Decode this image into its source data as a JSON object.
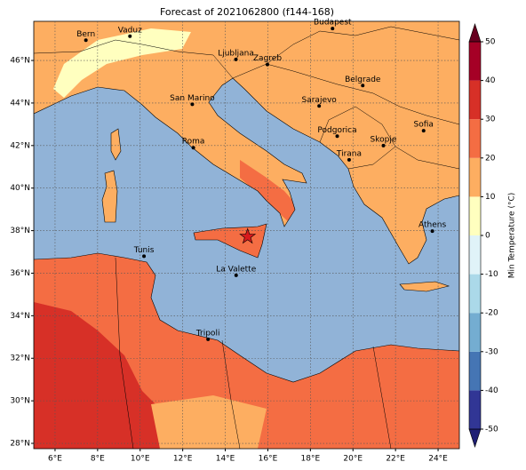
{
  "title": "Forecast of 2021062800 (f144-168)",
  "map": {
    "xlim": [
      5,
      25
    ],
    "ylim": [
      27.75,
      47.84
    ],
    "xticks": [
      {
        "value": 6,
        "label": "6°E"
      },
      {
        "value": 8,
        "label": "8°E"
      },
      {
        "value": 10,
        "label": "10°E"
      },
      {
        "value": 12,
        "label": "12°E"
      },
      {
        "value": 14,
        "label": "14°E"
      },
      {
        "value": 16,
        "label": "16°E"
      },
      {
        "value": 18,
        "label": "18°E"
      },
      {
        "value": 20,
        "label": "20°E"
      },
      {
        "value": 22,
        "label": "22°E"
      },
      {
        "value": 24,
        "label": "24°E"
      }
    ],
    "yticks": [
      {
        "value": 28,
        "label": "28°N"
      },
      {
        "value": 30,
        "label": "30°N"
      },
      {
        "value": 32,
        "label": "32°N"
      },
      {
        "value": 34,
        "label": "34°N"
      },
      {
        "value": 36,
        "label": "36°N"
      },
      {
        "value": 38,
        "label": "38°N"
      },
      {
        "value": 40,
        "label": "40°N"
      },
      {
        "value": 42,
        "label": "42°N"
      },
      {
        "value": 44,
        "label": "44°N"
      },
      {
        "value": 46,
        "label": "46°N"
      }
    ],
    "grid": true,
    "cities": [
      {
        "name": "Bern",
        "lon": 7.45,
        "lat": 46.95
      },
      {
        "name": "Vaduz",
        "lon": 9.52,
        "lat": 47.14
      },
      {
        "name": "Budapest",
        "lon": 19.04,
        "lat": 47.5
      },
      {
        "name": "Ljubljana",
        "lon": 14.5,
        "lat": 46.05
      },
      {
        "name": "Zagreb",
        "lon": 15.98,
        "lat": 45.81
      },
      {
        "name": "Belgrade",
        "lon": 20.46,
        "lat": 44.82
      },
      {
        "name": "San Marino",
        "lon": 12.45,
        "lat": 43.94
      },
      {
        "name": "Sarajevo",
        "lon": 18.41,
        "lat": 43.86
      },
      {
        "name": "Sofia",
        "lon": 23.32,
        "lat": 42.7
      },
      {
        "name": "Roma",
        "lon": 12.5,
        "lat": 41.9
      },
      {
        "name": "Podgorica",
        "lon": 19.26,
        "lat": 42.44
      },
      {
        "name": "Skopje",
        "lon": 21.43,
        "lat": 42.0
      },
      {
        "name": "Tirana",
        "lon": 19.82,
        "lat": 41.33
      },
      {
        "name": "Athens",
        "lon": 23.73,
        "lat": 37.98
      },
      {
        "name": "Tunis",
        "lon": 10.18,
        "lat": 36.8
      },
      {
        "name": "La Valette",
        "lon": 14.51,
        "lat": 35.9
      },
      {
        "name": "Tripoli",
        "lon": 13.19,
        "lat": 32.89
      }
    ],
    "marker": {
      "lon": 15.05,
      "lat": 37.72,
      "color": "#d7191c"
    }
  },
  "colorbar": {
    "label": "Min Temperature (°C)",
    "ticks": [
      -50,
      -40,
      -30,
      -20,
      -10,
      0,
      10,
      20,
      30,
      40,
      50
    ],
    "colors": [
      "#313695",
      "#4575b4",
      "#74add1",
      "#abd9e9",
      "#e0f3f8",
      "#ffffbf",
      "#fdae61",
      "#f46d43",
      "#d73027",
      "#a50026"
    ],
    "under": "#1f1f75",
    "over": "#67001f"
  }
}
